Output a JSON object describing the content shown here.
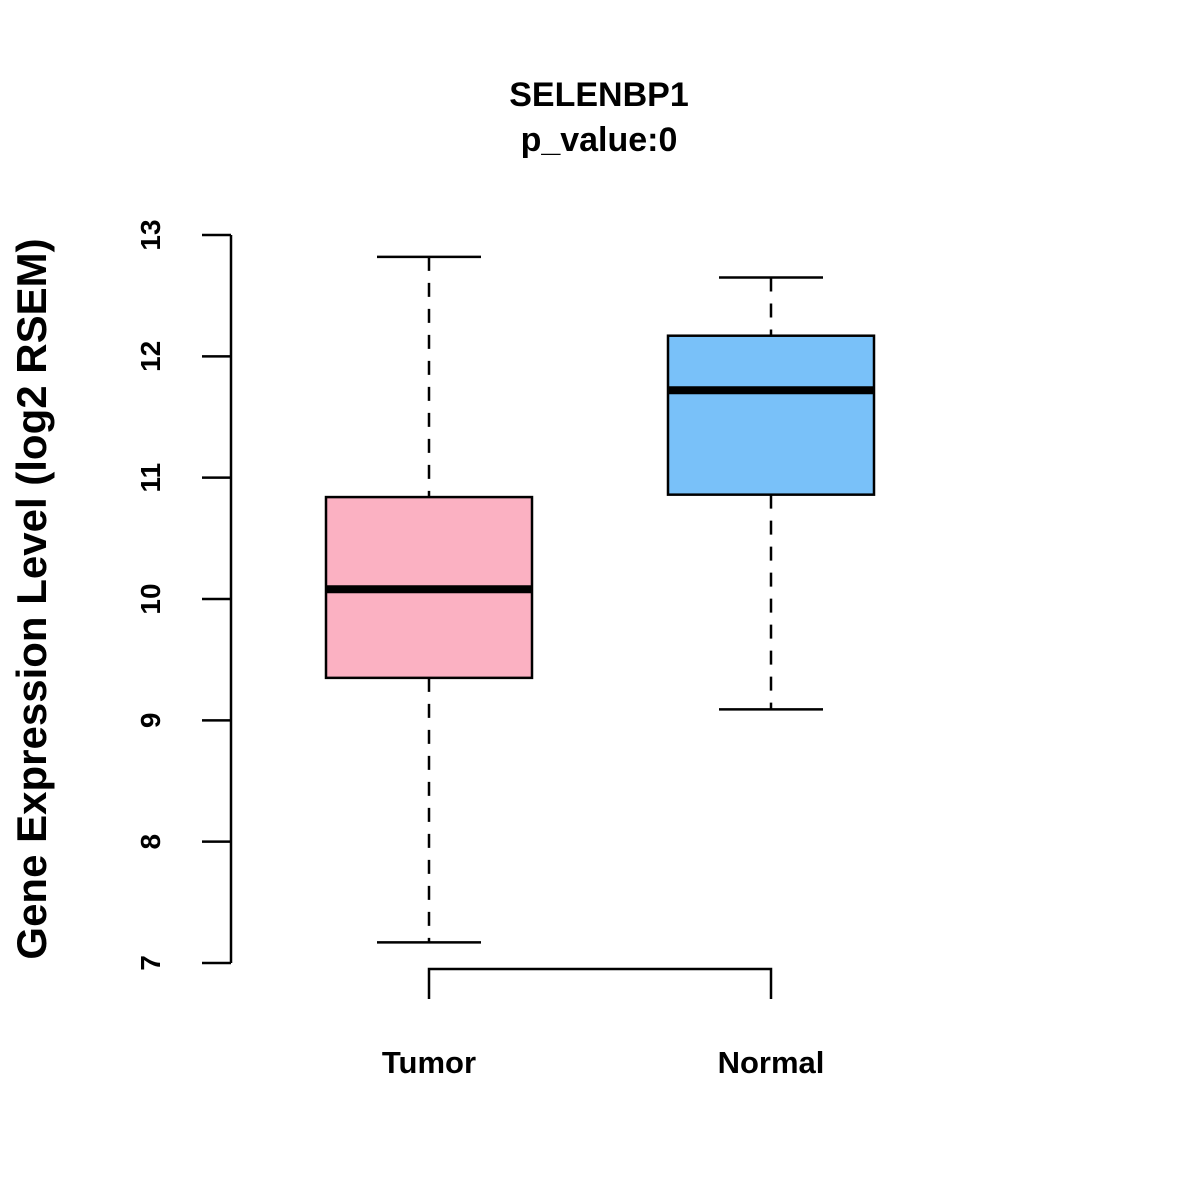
{
  "chart_data": {
    "type": "box",
    "title": "SELENBP1",
    "subtitle": "p_value:0",
    "xlabel": "",
    "ylabel": "Gene Expression Level (log2 RSEM)",
    "ylim": [
      7,
      13
    ],
    "yticks": [
      "7",
      "8",
      "9",
      "10",
      "11",
      "12",
      "13"
    ],
    "categories": [
      "Tumor",
      "Normal"
    ],
    "boxes": [
      {
        "name": "Tumor",
        "whisker_low": 7.17,
        "q1": 9.35,
        "median": 10.08,
        "q3": 10.84,
        "whisker_high": 12.82,
        "color": "#FBB1C2"
      },
      {
        "name": "Normal",
        "whisker_low": 9.09,
        "q1": 10.86,
        "median": 11.72,
        "q3": 12.17,
        "whisker_high": 12.65,
        "color": "#79C1F9"
      }
    ],
    "comparison_bracket": [
      "Tumor",
      "Normal"
    ]
  }
}
